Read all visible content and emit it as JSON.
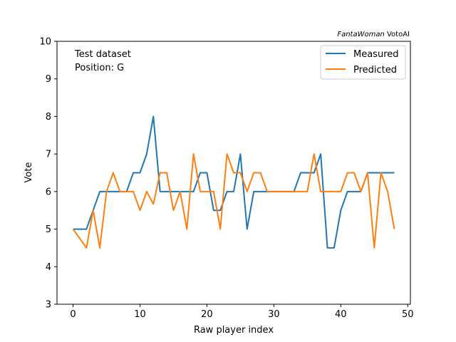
{
  "chart_data": {
    "type": "line",
    "watermark": {
      "italic": "FantaWoman",
      "normal": " VotoAI"
    },
    "annotations": [
      "Test dataset",
      "Position: G"
    ],
    "xlabel": "Raw player index",
    "ylabel": "Vote",
    "xlim": [
      -2.4,
      50.4
    ],
    "ylim": [
      3,
      10
    ],
    "xticks": [
      0,
      10,
      20,
      30,
      40,
      50
    ],
    "yticks": [
      3,
      4,
      5,
      6,
      7,
      8,
      9,
      10
    ],
    "legend_position": "upper right",
    "x": [
      0,
      1,
      2,
      3,
      4,
      5,
      6,
      7,
      8,
      9,
      10,
      11,
      12,
      13,
      14,
      15,
      16,
      17,
      18,
      19,
      20,
      21,
      22,
      23,
      24,
      25,
      26,
      27,
      28,
      29,
      30,
      31,
      32,
      33,
      34,
      35,
      36,
      37,
      38,
      39,
      40,
      41,
      42,
      43,
      44,
      45,
      46,
      47,
      48
    ],
    "series": [
      {
        "name": "Measured",
        "color": "#1f77b4",
        "values": [
          5,
          5,
          5,
          5.5,
          6,
          6,
          6,
          6,
          6,
          6.5,
          6.5,
          7,
          8,
          6,
          6,
          6,
          6,
          6,
          6,
          6.5,
          6.5,
          5.5,
          5.5,
          6,
          6,
          7,
          5,
          6,
          6,
          6,
          6,
          6,
          6,
          6,
          6.5,
          6.5,
          6.5,
          7,
          4.5,
          4.5,
          5.5,
          6,
          6,
          6,
          6.5,
          6.5,
          6.5,
          6.5,
          6.5
        ]
      },
      {
        "name": "Predicted",
        "color": "#ff7f0e",
        "values": [
          5,
          4.75,
          4.5,
          5.5,
          4.5,
          6,
          6.5,
          6,
          6,
          6,
          5.5,
          6,
          5.67,
          6.5,
          6.5,
          5.5,
          6,
          5,
          7,
          6,
          6,
          6,
          5,
          7,
          6.5,
          6.5,
          6,
          6.5,
          6.5,
          6,
          6,
          6,
          6,
          6,
          6,
          6,
          7,
          6,
          6,
          6,
          6,
          6.5,
          6.5,
          6,
          6.5,
          4.5,
          6.5,
          6,
          5
        ]
      }
    ]
  }
}
